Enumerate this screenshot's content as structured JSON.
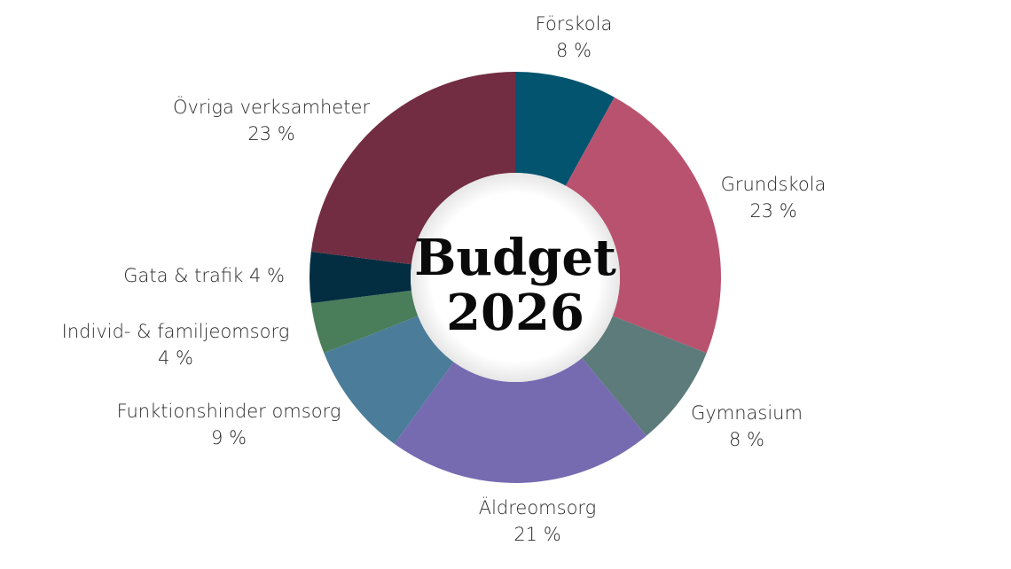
{
  "chart_data": {
    "type": "pie",
    "variant": "donut",
    "center_title": [
      "Budget",
      "2026"
    ],
    "slices": [
      {
        "label": "Förskola",
        "value": 8,
        "value_label": "8 %",
        "color": "#02546f"
      },
      {
        "label": "Grundskola",
        "value": 23,
        "value_label": "23 %",
        "color": "#b9526f"
      },
      {
        "label": "Gymnasium",
        "value": 8,
        "value_label": "8 %",
        "color": "#5c7b7a"
      },
      {
        "label": "Äldreomsorg",
        "value": 21,
        "value_label": "21 %",
        "color": "#766bb0"
      },
      {
        "label": "Funktionshinder omsorg",
        "value": 9,
        "value_label": "9 %",
        "color": "#4b7c99"
      },
      {
        "label": "Individ- & familjeomsorg",
        "value": 4,
        "value_label": "4 %",
        "color": "#4a7d5a"
      },
      {
        "label": "Gata & trafik",
        "value": 4,
        "value_label": "4 %",
        "color": "#032d40"
      },
      {
        "label": "Övriga verksamheter",
        "value": 23,
        "value_label": "23 %",
        "color": "#722d42"
      }
    ]
  }
}
